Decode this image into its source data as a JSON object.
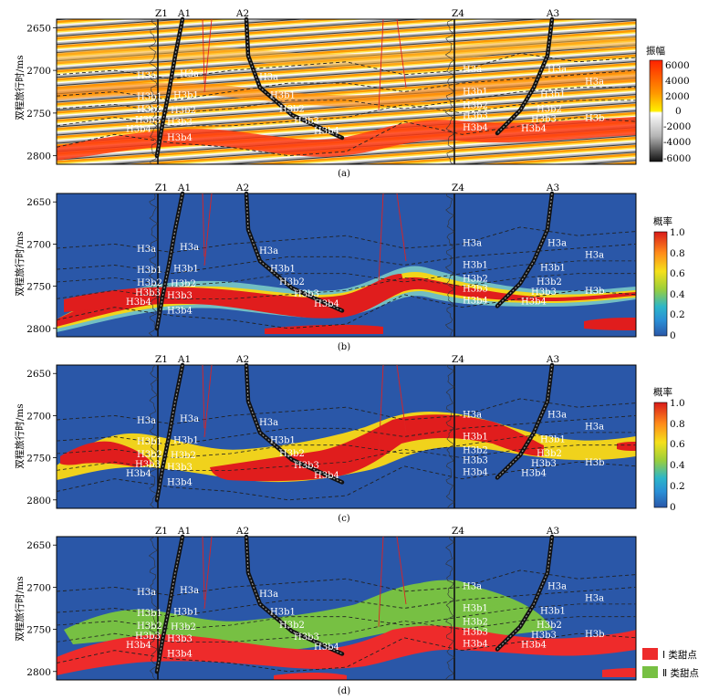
{
  "y_axis_label": "双程旅行时/ms",
  "y_ticks": [
    "2650",
    "2700",
    "2750",
    "2800"
  ],
  "well_names": [
    "Z1",
    "A1",
    "A2",
    "Z4",
    "A3"
  ],
  "horizon_labels": [
    "H3a",
    "H3b1",
    "H3b2",
    "H3b3",
    "H3b4",
    "H3b"
  ],
  "panels": [
    {
      "id": "a",
      "caption": "(a)",
      "colorbar_title": "振幅",
      "colorbar_ticks": [
        "6000",
        "4000",
        "2000",
        "0",
        "-2000",
        "-4000",
        "-6000"
      ],
      "colors": [
        "#ff2200",
        "#ff9900",
        "#ffee00",
        "#ffffff",
        "#b4b4b4",
        "#111111"
      ]
    },
    {
      "id": "b",
      "caption": "(b)",
      "colorbar_title": "概率",
      "colorbar_ticks": [
        "1.0",
        "0.8",
        "0.6",
        "0.4",
        "0.2",
        "0"
      ]
    },
    {
      "id": "c",
      "caption": "(c)",
      "colorbar_title": "概率",
      "colorbar_ticks": [
        "1.0",
        "0.8",
        "0.6",
        "0.4",
        "0.2",
        "0"
      ]
    },
    {
      "id": "d",
      "caption": "(d)",
      "legend": [
        {
          "label": "Ⅰ 类甜点",
          "color": "#ee2b2b"
        },
        {
          "label": "Ⅱ 类甜点",
          "color": "#77c043"
        }
      ]
    }
  ],
  "chart_data": {
    "type": "heatmap",
    "x_range": [
      0,
      1
    ],
    "y_range": [
      2640,
      2810
    ],
    "y_reverse": true,
    "horizon_times_ms": {
      "H3a": [
        2705,
        2700,
        2710,
        2700,
        2695,
        2690,
        2705,
        2700,
        2680,
        2690,
        2685
      ],
      "H3b1": [
        2730,
        2725,
        2735,
        2725,
        2715,
        2715,
        2725,
        2715,
        2710,
        2705,
        2700
      ],
      "H3b4": [
        2790,
        2775,
        2785,
        2790,
        2800,
        2795,
        2760,
        2775,
        2765,
        2755,
        2760
      ]
    }
  }
}
